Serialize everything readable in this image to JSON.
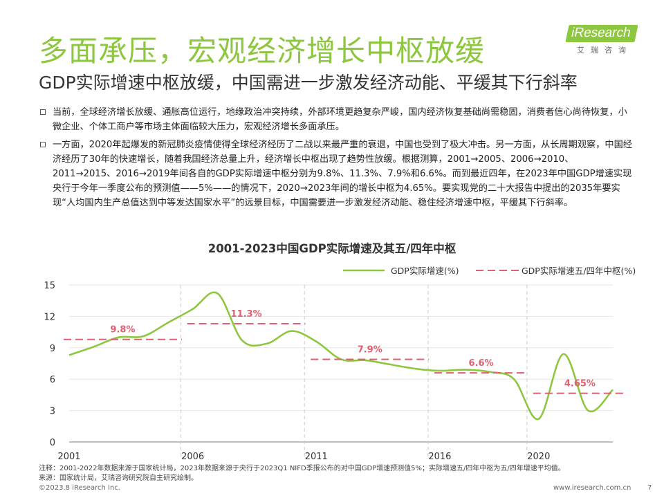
{
  "header": {
    "main_title": "多面承压，宏观经济增长中枢放缓",
    "subtitle": "GDP实际增速中枢放缓，中国需进一步激发经济动能、平缓其下行斜率",
    "logo_text": "iResearch",
    "logo_subtext": "艾瑞咨询"
  },
  "bullets": [
    "当前，全球经济增长放缓、通胀高位运行，地缘政治冲突持续，外部环境更趋复杂严峻，国内经济恢复基础尚需稳固，消费者信心尚待恢复，小微企业、个体工商户等市场主体面临较大压力，宏观经济增长多面承压。",
    "一方面，2020年起爆发的新冠肺炎疫情使得全球经济经历了二战以来最严重的衰退，中国也受到了极大冲击。另一方面，从长周期观察，中国经济经历了30年的快速增长，随着我国经济总量上升，经济增长中枢出现了趋势性放缓。根据测算，2001→2005、2006→2010、2011→2015、2016→2019年间各自的GDP实际增速中枢分别为9.8%、11.3%、7.9%和6.6%。而到最近四年，在2023年中国GDP增速实现央行于今年一季度公布的预测值——5%——的情况下，2020→2023年间的增长中枢为4.65%。要实现党的二十大报告中提出的2035年要实现“人均国内生产总值达到中等发达国家水平”的远景目标，中国需要进一步激发经济动能、稳住经济增速中枢，平缓其下行斜率。"
  ],
  "chart_data": {
    "type": "line",
    "title": "2001-2023中国GDP实际增速及其五/四年中枢",
    "x_ticks": [
      2001,
      2006,
      2011,
      2016,
      2020
    ],
    "y_ticks": [
      0,
      3,
      6,
      9,
      12,
      15
    ],
    "ylim": [
      0,
      15
    ],
    "xlim": [
      2001,
      2023
    ],
    "legend_position": "top-right",
    "series": [
      {
        "name": "GDP实际增速(%)",
        "color": "#8dc63f",
        "x": [
          2001,
          2002,
          2003,
          2004,
          2005,
          2006,
          2007,
          2008,
          2009,
          2010,
          2011,
          2012,
          2013,
          2014,
          2015,
          2016,
          2017,
          2018,
          2019,
          2020,
          2021,
          2022,
          2023
        ],
        "y": [
          8.3,
          9.1,
          10.0,
          10.1,
          11.4,
          12.7,
          14.2,
          9.7,
          9.4,
          10.6,
          9.6,
          7.9,
          7.8,
          7.4,
          7.0,
          6.8,
          6.9,
          6.7,
          6.0,
          2.2,
          8.4,
          3.0,
          5.0
        ]
      },
      {
        "name": "GDP实际增速五/四年中枢(%)",
        "color": "#e06070",
        "segments": [
          {
            "x_start": 2001,
            "x_end": 2005,
            "value": 9.8,
            "label": "9.8%"
          },
          {
            "x_start": 2006,
            "x_end": 2010,
            "value": 11.3,
            "label": "11.3%"
          },
          {
            "x_start": 2011,
            "x_end": 2015,
            "value": 7.9,
            "label": "7.9%"
          },
          {
            "x_start": 2016,
            "x_end": 2019,
            "value": 6.6,
            "label": "6.6%"
          },
          {
            "x_start": 2020,
            "x_end": 2023,
            "value": 4.65,
            "label": "4.65%"
          }
        ]
      }
    ],
    "period_dividers": [
      2006,
      2011,
      2016,
      2020
    ]
  },
  "footer": {
    "note": "注释：2001-2022年数据来源于国家统计局，2023年数据来源于央行于2023Q1 NIFD季报公布的对中国GDP增速预测值5%；实际增速五/四年中枢为五/四年增速平均值。",
    "source": "来源：国家统计局，艾瑞咨询研究院自主研究绘制。",
    "copyright": "©2023.8 iResearch Inc.",
    "website": "www.iresearch.com.cn",
    "page_number": "7"
  }
}
